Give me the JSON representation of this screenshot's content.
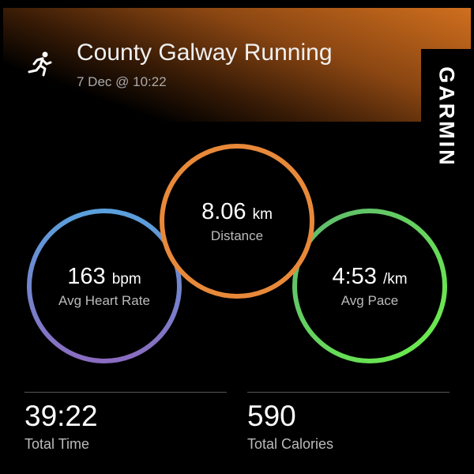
{
  "activity": {
    "title": "County Galway Running",
    "date": "7 Dec @ 10:22",
    "icon": "running-icon"
  },
  "brand": "GARMIN",
  "metrics": [
    {
      "value": "8.06",
      "unit": "km",
      "label": "Distance",
      "color": "#e8893a"
    },
    {
      "value": "163",
      "unit": "bpm",
      "label": "Avg Heart Rate",
      "color_start": "#5aa0dc",
      "color_end": "#8a6cc0"
    },
    {
      "value": "4:53",
      "unit": "/km",
      "label": "Avg Pace",
      "color_start": "#5fb870",
      "color_end": "#6cf04a"
    }
  ],
  "stats": [
    {
      "value": "39:22",
      "label": "Total Time"
    },
    {
      "value": "590",
      "label": "Total Calories"
    }
  ]
}
